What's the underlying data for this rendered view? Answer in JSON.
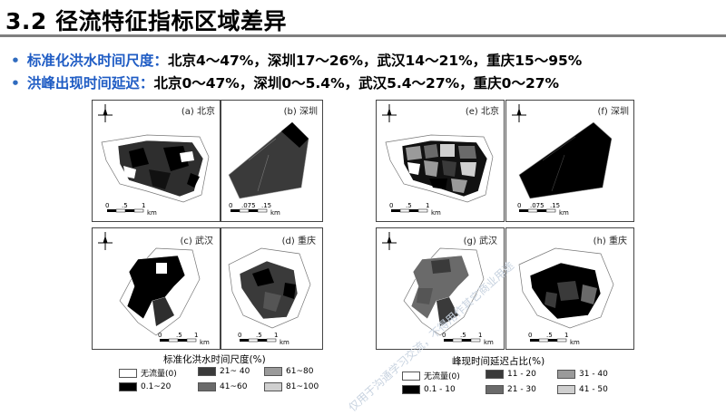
{
  "slide": {
    "title": "3.2 径流特征指标区域差异",
    "bullets": [
      {
        "key": "标准化洪水时间尺度：",
        "value": "北京4～47%，深圳17～26%，武汉14～21%，重庆15～95%"
      },
      {
        "key": "洪峰出现时间延迟：",
        "value": "北京0～47%，深圳0～5.4%，武汉5.4～27%，重庆0～27%"
      }
    ]
  },
  "left_figure": {
    "panels": [
      {
        "id": "a",
        "label": "(a) 北京",
        "scale": [
          "0",
          ".5",
          "1",
          "km"
        ]
      },
      {
        "id": "b",
        "label": "(b) 深圳",
        "scale": [
          "0",
          ".075",
          ".15",
          "km"
        ]
      },
      {
        "id": "c",
        "label": "(c) 武汉",
        "scale": [
          "0",
          ".5",
          "1",
          "km"
        ]
      },
      {
        "id": "d",
        "label": "(d) 重庆",
        "scale": [
          "0",
          ".5",
          "1",
          "km"
        ]
      }
    ],
    "legend_title": "标准化洪水时间尺度(%)",
    "legend": [
      {
        "label": "无流量(0)",
        "color": "#ffffff"
      },
      {
        "label": "21~ 40",
        "color": "#3a3a3a"
      },
      {
        "label": "61~80",
        "color": "#9a9a9a"
      },
      {
        "label": "0.1~20",
        "color": "#000000"
      },
      {
        "label": "41~60",
        "color": "#6a6a6a"
      },
      {
        "label": "81~100",
        "color": "#cfcfcf"
      }
    ]
  },
  "right_figure": {
    "panels": [
      {
        "id": "e",
        "label": "(e) 北京",
        "scale": [
          "0",
          ".5",
          "1",
          "km"
        ]
      },
      {
        "id": "f",
        "label": "(f) 深圳",
        "scale": [
          "0",
          ".075",
          ".15",
          "km"
        ]
      },
      {
        "id": "g",
        "label": "(g) 武汉",
        "scale": [
          "0",
          ".5",
          "1",
          "km"
        ]
      },
      {
        "id": "h",
        "label": "(h) 重庆",
        "scale": [
          "0",
          ".5",
          "1",
          "km"
        ]
      }
    ],
    "legend_title": "峰现时间延迟占比(%)",
    "legend": [
      {
        "label": "无流量(0)",
        "color": "#ffffff"
      },
      {
        "label": "11 - 20",
        "color": "#3a3a3a"
      },
      {
        "label": "31 - 40",
        "color": "#9a9a9a"
      },
      {
        "label": "0.1 - 10",
        "color": "#000000"
      },
      {
        "label": "21 - 30",
        "color": "#6a6a6a"
      },
      {
        "label": "41 - 50",
        "color": "#cfcfcf"
      }
    ]
  },
  "north_label": "N",
  "watermark": "仅用于沟通学习交流，不得用作其它商业用途"
}
